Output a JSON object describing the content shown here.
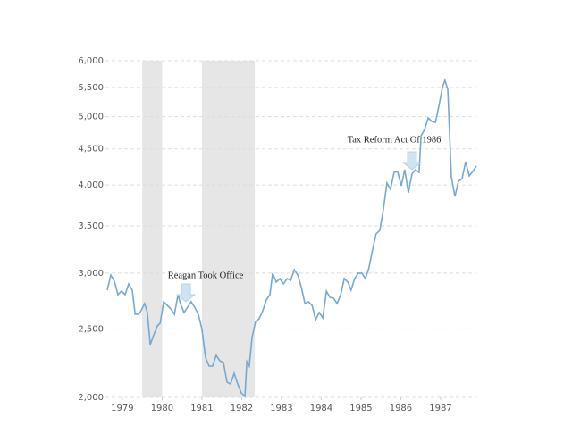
{
  "chart_data": {
    "type": "line",
    "log_scale_y": true,
    "grid": true,
    "color": "#74a9d4",
    "shade_color": "#e6e6e6",
    "xlim": [
      1978.62,
      1987.9
    ],
    "xticks": [
      1979,
      1980,
      1981,
      1982,
      1983,
      1984,
      1985,
      1986,
      1987
    ],
    "ylim": [
      2000,
      6000
    ],
    "yticks": [
      {
        "value": 2000,
        "label": "2,000"
      },
      {
        "value": 2500,
        "label": "2,500"
      },
      {
        "value": 3000,
        "label": "3,000"
      },
      {
        "value": 3500,
        "label": "3,500"
      },
      {
        "value": 4000,
        "label": "4,000"
      },
      {
        "value": 4500,
        "label": "4,500"
      },
      {
        "value": 5000,
        "label": "5,000"
      },
      {
        "value": 5500,
        "label": "5,500"
      },
      {
        "value": 6000,
        "label": "6,000"
      }
    ],
    "shaded_regions": [
      [
        1979.5,
        1980.0
      ],
      [
        1981.0,
        1982.33
      ]
    ],
    "annotations": [
      "Reagan Took Office",
      "Tax Reform Act Of 1986"
    ],
    "x": [
      1978.62,
      1978.71,
      1978.8,
      1978.89,
      1978.98,
      1979.07,
      1979.16,
      1979.25,
      1979.32,
      1979.41,
      1979.47,
      1979.56,
      1979.63,
      1979.7,
      1979.79,
      1979.88,
      1979.95,
      1980.04,
      1980.13,
      1980.22,
      1980.31,
      1980.4,
      1980.46,
      1980.55,
      1980.64,
      1980.73,
      1980.82,
      1980.91,
      1981.0,
      1981.09,
      1981.18,
      1981.27,
      1981.36,
      1981.45,
      1981.54,
      1981.63,
      1981.72,
      1981.81,
      1981.9,
      1981.99,
      1982.08,
      1982.13,
      1982.19,
      1982.26,
      1982.35,
      1982.44,
      1982.53,
      1982.62,
      1982.71,
      1982.78,
      1982.87,
      1982.96,
      1983.05,
      1983.14,
      1983.23,
      1983.32,
      1983.41,
      1983.5,
      1983.59,
      1983.68,
      1983.77,
      1983.86,
      1983.95,
      1984.04,
      1984.13,
      1984.22,
      1984.31,
      1984.4,
      1984.49,
      1984.58,
      1984.67,
      1984.75,
      1984.84,
      1984.93,
      1985.02,
      1985.11,
      1985.2,
      1985.29,
      1985.38,
      1985.47,
      1985.56,
      1985.65,
      1985.74,
      1985.83,
      1985.92,
      1986.01,
      1986.1,
      1986.19,
      1986.28,
      1986.37,
      1986.46,
      1986.51,
      1986.6,
      1986.69,
      1986.78,
      1986.87,
      1986.96,
      1987.05,
      1987.11,
      1987.18,
      1987.27,
      1987.36,
      1987.45,
      1987.54,
      1987.63,
      1987.72,
      1987.81,
      1987.9
    ],
    "values": [
      2837,
      2981,
      2921,
      2796,
      2829,
      2796,
      2896,
      2837,
      2623,
      2623,
      2653,
      2716,
      2638,
      2375,
      2453,
      2525,
      2547,
      2732,
      2700,
      2669,
      2623,
      2796,
      2716,
      2638,
      2684,
      2732,
      2684,
      2623,
      2500,
      2280,
      2215,
      2215,
      2294,
      2254,
      2241,
      2102,
      2089,
      2164,
      2089,
      2029,
      2006,
      2247,
      2215,
      2431,
      2562,
      2585,
      2653,
      2748,
      2796,
      3000,
      2913,
      2947,
      2896,
      2947,
      2930,
      3034,
      2981,
      2862,
      2716,
      2732,
      2700,
      2577,
      2638,
      2592,
      2829,
      2772,
      2764,
      2716,
      2796,
      2947,
      2913,
      2837,
      2947,
      3000,
      3000,
      2947,
      3052,
      3235,
      3409,
      3449,
      3688,
      4025,
      3944,
      4168,
      4180,
      3990,
      4205,
      3898,
      4144,
      4205,
      4168,
      4697,
      4794,
      4979,
      4921,
      4907,
      5186,
      5514,
      5627,
      5466,
      4108,
      3853,
      4048,
      4084,
      4316,
      4120,
      4180,
      4254
    ]
  }
}
